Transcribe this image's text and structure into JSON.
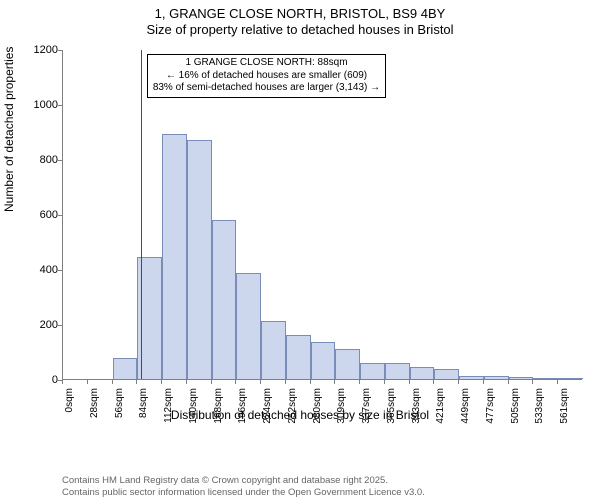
{
  "title": {
    "main": "1, GRANGE CLOSE NORTH, BRISTOL, BS9 4BY",
    "sub": "Size of property relative to detached houses in Bristol"
  },
  "chart": {
    "type": "histogram",
    "ylabel": "Number of detached properties",
    "xlabel": "Distribution of detached houses by size in Bristol",
    "ylim": [
      0,
      1200
    ],
    "ytick_step": 200,
    "yticks": [
      0,
      200,
      400,
      600,
      800,
      1000,
      1200
    ],
    "xtick_labels": [
      "0sqm",
      "28sqm",
      "56sqm",
      "84sqm",
      "112sqm",
      "140sqm",
      "168sqm",
      "196sqm",
      "224sqm",
      "252sqm",
      "280sqm",
      "309sqm",
      "337sqm",
      "365sqm",
      "393sqm",
      "421sqm",
      "449sqm",
      "477sqm",
      "505sqm",
      "533sqm",
      "561sqm"
    ],
    "bar_values": [
      0,
      0,
      75,
      445,
      890,
      870,
      580,
      385,
      210,
      160,
      135,
      110,
      60,
      60,
      45,
      35,
      12,
      12,
      8,
      5,
      5
    ],
    "bar_fill": "#ccd6ec",
    "bar_stroke": "#7a8db8",
    "bar_stroke_width": 1,
    "background_color": "#ffffff",
    "axis_color": "#808080",
    "tick_fontsize": 11,
    "label_fontsize": 12,
    "title_fontsize": 13,
    "reference_line": {
      "value_sqm": 88,
      "color": "#ff0000",
      "width": 1
    },
    "annotation": {
      "line1": "1 GRANGE CLOSE NORTH: 88sqm",
      "line2": "← 16% of detached houses are smaller (609)",
      "line3": "83% of semi-detached houses are larger (3,143) →",
      "border_color": "#000000",
      "background": "#ffffff",
      "fontsize": 10
    }
  },
  "footer": {
    "line1": "Contains HM Land Registry data © Crown copyright and database right 2025.",
    "line2": "Contains public sector information licensed under the Open Government Licence v3.0.",
    "color": "#666666",
    "fontsize": 9.5
  }
}
